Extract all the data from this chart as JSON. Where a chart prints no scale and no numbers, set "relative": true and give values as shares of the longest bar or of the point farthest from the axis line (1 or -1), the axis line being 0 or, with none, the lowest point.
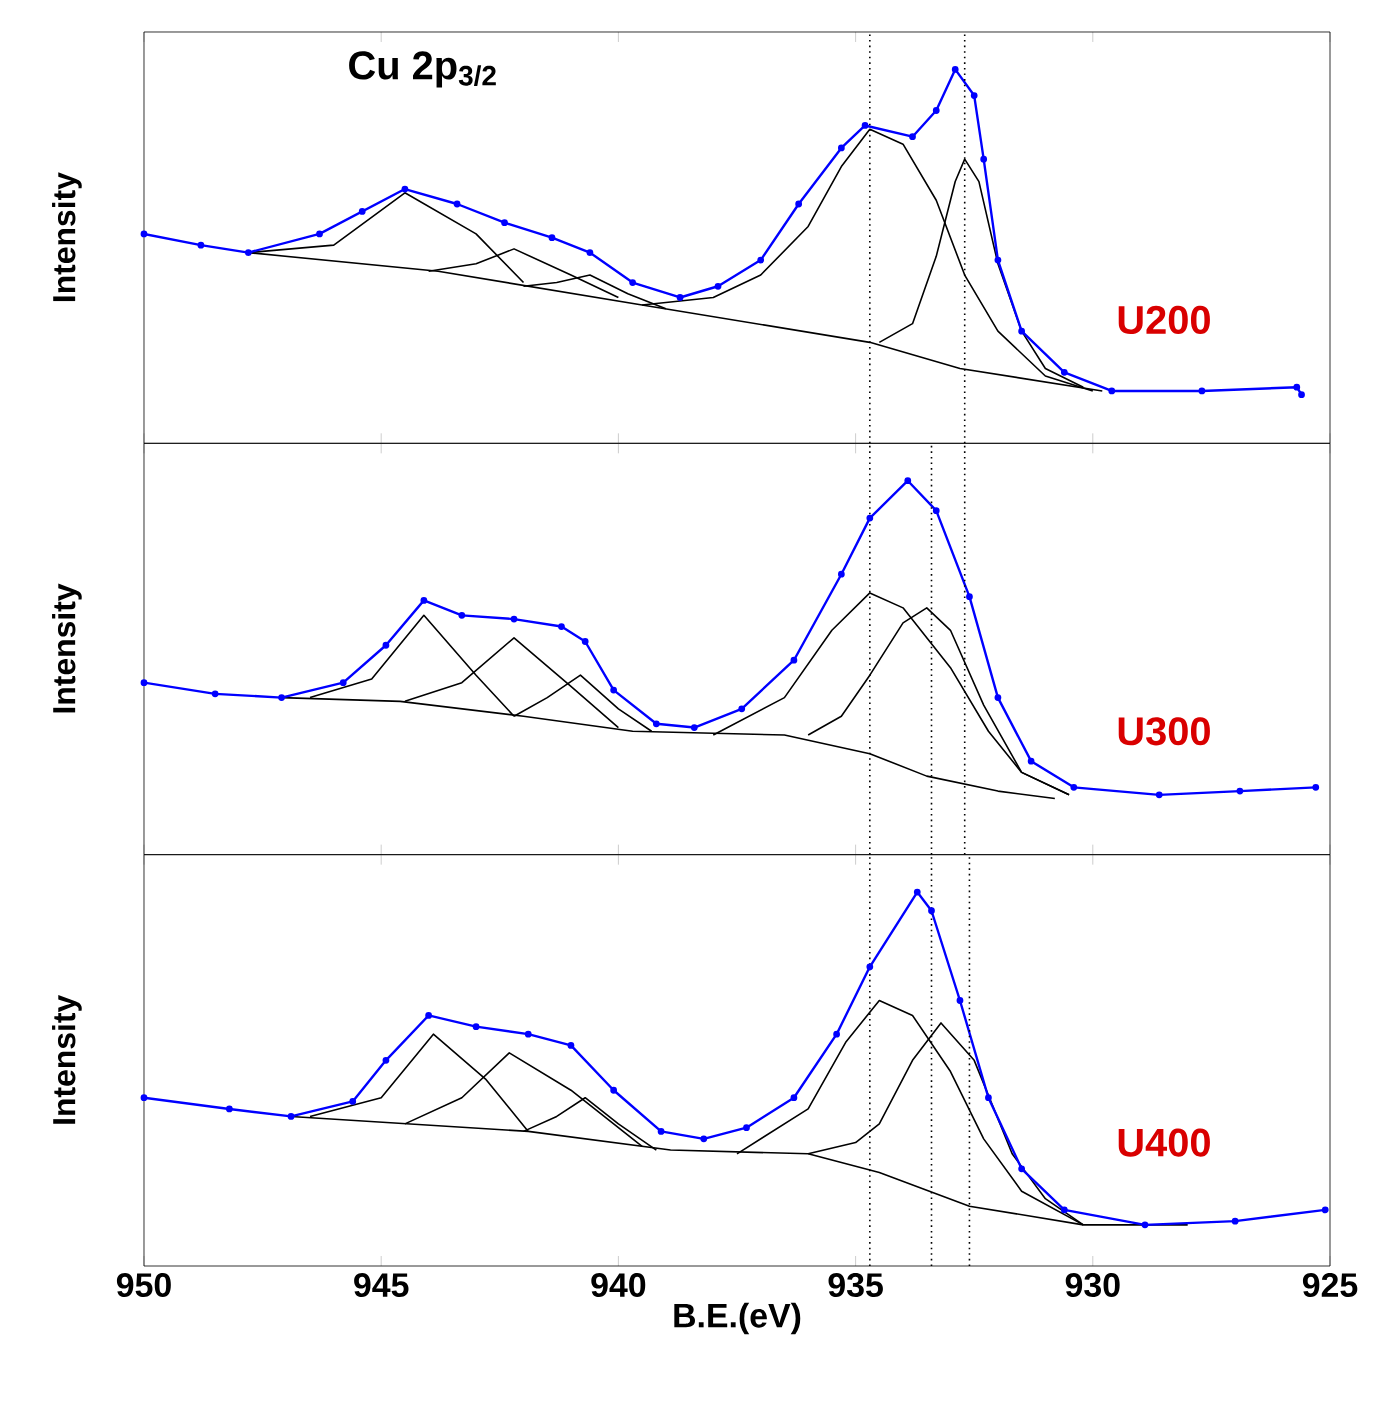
{
  "chart_data": [
    {
      "type": "line",
      "title": "Cu 2p$_{3/2}$",
      "ylabel": "Intensity",
      "relative": true,
      "tick_labels": false,
      "xlim": [
        950,
        925
      ],
      "xticks": [
        950,
        945,
        940,
        935,
        930,
        925
      ],
      "annotations": [
        "U200"
      ],
      "ref_lines": [
        {
          "axis": "x",
          "value": 934.7,
          "line_style": "dotted",
          "color": "#000000"
        },
        {
          "axis": "x",
          "value": 932.7,
          "line_style": "dotted",
          "color": "#000000"
        }
      ],
      "series": [
        {
          "marker": "none",
          "color": "#000000",
          "x": [
            947.8,
            943.8,
            939.5,
            934.7,
            932.8,
            929.8
          ],
          "values": [
            0.51,
            0.46,
            0.37,
            0.27,
            0.2,
            0.14
          ]
        },
        {
          "marker": "none",
          "color": "#000000",
          "x": [
            947.8,
            946,
            944.5,
            943,
            942
          ],
          "values": [
            0.51,
            0.53,
            0.67,
            0.56,
            0.43
          ]
        },
        {
          "marker": "none",
          "color": "#000000",
          "x": [
            944,
            943,
            942.2,
            941,
            940
          ],
          "values": [
            0.46,
            0.48,
            0.52,
            0.45,
            0.39
          ]
        },
        {
          "marker": "none",
          "color": "#000000",
          "x": [
            942,
            941.3,
            940.6,
            939.8,
            939
          ],
          "values": [
            0.42,
            0.43,
            0.45,
            0.4,
            0.36
          ]
        },
        {
          "marker": "none",
          "color": "#000000",
          "x": [
            939.5,
            938,
            937,
            936,
            935.3,
            934.7,
            934,
            933.3,
            932.7,
            932,
            931,
            930
          ],
          "values": [
            0.37,
            0.39,
            0.45,
            0.58,
            0.74,
            0.84,
            0.8,
            0.65,
            0.45,
            0.3,
            0.18,
            0.14
          ]
        },
        {
          "marker": "none",
          "color": "#000000",
          "x": [
            934.5,
            933.8,
            933.3,
            932.9,
            932.7,
            932.4,
            932,
            931.5,
            931,
            930.2
          ],
          "values": [
            0.27,
            0.32,
            0.5,
            0.7,
            0.76,
            0.7,
            0.48,
            0.3,
            0.2,
            0.15
          ]
        },
        {
          "marker": "circle",
          "color": "#0000ff",
          "x": [
            950,
            948.8,
            947.8,
            946.3,
            945.4,
            944.5,
            943.4,
            942.4,
            941.4,
            940.6,
            939.7,
            938.7,
            937.9,
            937.0,
            936.2,
            935.3,
            934.8,
            933.8,
            933.3,
            932.9,
            932.5,
            932.3,
            932.0,
            931.5,
            930.6,
            929.6,
            927.7,
            925.7,
            925.6
          ],
          "values": [
            0.56,
            0.53,
            0.51,
            0.56,
            0.62,
            0.68,
            0.64,
            0.59,
            0.55,
            0.51,
            0.43,
            0.39,
            0.42,
            0.49,
            0.64,
            0.79,
            0.85,
            0.82,
            0.89,
            1.0,
            0.93,
            0.76,
            0.49,
            0.3,
            0.19,
            0.14,
            0.14,
            0.15,
            0.13
          ]
        }
      ]
    },
    {
      "type": "line",
      "ylabel": "Intensity",
      "relative": true,
      "tick_labels": false,
      "xlim": [
        950,
        925
      ],
      "xticks": [
        950,
        945,
        940,
        935,
        930,
        925
      ],
      "annotations": [
        "U300"
      ],
      "ref_lines": [
        {
          "axis": "x",
          "value": 934.7,
          "line_style": "dotted",
          "color": "#000000"
        },
        {
          "axis": "x",
          "value": 933.4,
          "line_style": "dotted",
          "color": "#000000"
        },
        {
          "axis": "x",
          "value": 932.7,
          "line_style": "dotted",
          "color": "#000000"
        }
      ],
      "series": [
        {
          "marker": "none",
          "color": "#000000",
          "x": [
            947.1,
            944.6,
            942,
            939.7,
            936.5,
            934.7,
            933.5,
            932,
            930.8
          ],
          "values": [
            0.42,
            0.41,
            0.37,
            0.33,
            0.32,
            0.27,
            0.21,
            0.17,
            0.15
          ]
        },
        {
          "marker": "none",
          "color": "#000000",
          "x": [
            946.5,
            945.2,
            944.1,
            943,
            942.2
          ],
          "values": [
            0.42,
            0.47,
            0.64,
            0.48,
            0.37
          ]
        },
        {
          "marker": "none",
          "color": "#000000",
          "x": [
            944.5,
            943.3,
            942.2,
            941,
            940
          ],
          "values": [
            0.41,
            0.46,
            0.58,
            0.45,
            0.34
          ]
        },
        {
          "marker": "none",
          "color": "#000000",
          "x": [
            942.2,
            941.5,
            940.8,
            940,
            939.3
          ],
          "values": [
            0.37,
            0.42,
            0.48,
            0.39,
            0.33
          ]
        },
        {
          "marker": "none",
          "color": "#000000",
          "x": [
            938,
            936.5,
            935.5,
            934.7,
            934,
            933,
            932.2,
            931.5,
            930.5
          ],
          "values": [
            0.32,
            0.42,
            0.6,
            0.7,
            0.66,
            0.5,
            0.33,
            0.22,
            0.16
          ]
        },
        {
          "marker": "none",
          "color": "#000000",
          "x": [
            936,
            935.3,
            934.7,
            934,
            933.5,
            933,
            932.3,
            931.5,
            930.5
          ],
          "values": [
            0.32,
            0.37,
            0.48,
            0.62,
            0.66,
            0.6,
            0.4,
            0.22,
            0.16
          ]
        },
        {
          "marker": "circle",
          "color": "#0000ff",
          "x": [
            950,
            948.5,
            947.1,
            945.8,
            944.9,
            944.1,
            943.3,
            942.2,
            941.2,
            940.7,
            940.1,
            939.2,
            938.4,
            937.4,
            936.3,
            935.3,
            934.7,
            933.9,
            933.3,
            932.6,
            932.0,
            931.3,
            930.4,
            928.6,
            926.9,
            925.3
          ],
          "values": [
            0.46,
            0.43,
            0.42,
            0.46,
            0.56,
            0.68,
            0.64,
            0.63,
            0.61,
            0.57,
            0.44,
            0.35,
            0.34,
            0.39,
            0.52,
            0.75,
            0.9,
            1.0,
            0.92,
            0.69,
            0.42,
            0.25,
            0.18,
            0.16,
            0.17,
            0.18
          ]
        }
      ]
    },
    {
      "type": "line",
      "xlabel": "B.E.(eV)",
      "ylabel": "Intensity",
      "relative": true,
      "tick_labels": "x",
      "xlim": [
        950,
        925
      ],
      "xticks": [
        950,
        945,
        940,
        935,
        930,
        925
      ],
      "annotations": [
        "U400"
      ],
      "ref_lines": [
        {
          "axis": "x",
          "value": 934.7,
          "line_style": "dotted",
          "color": "#000000"
        },
        {
          "axis": "x",
          "value": 933.4,
          "line_style": "dotted",
          "color": "#000000"
        },
        {
          "axis": "x",
          "value": 932.6,
          "line_style": "dotted",
          "color": "#000000"
        }
      ],
      "series": [
        {
          "marker": "none",
          "color": "#000000",
          "x": [
            946.9,
            941.9,
            938.9,
            936,
            934.5,
            932.6,
            930.2,
            928
          ],
          "values": [
            0.4,
            0.36,
            0.31,
            0.3,
            0.25,
            0.16,
            0.11,
            0.11
          ]
        },
        {
          "marker": "none",
          "color": "#000000",
          "x": [
            946.5,
            945,
            943.9,
            942.8,
            941.9
          ],
          "values": [
            0.4,
            0.45,
            0.62,
            0.5,
            0.36
          ]
        },
        {
          "marker": "none",
          "color": "#000000",
          "x": [
            944.5,
            943.3,
            942.3,
            941,
            939.5
          ],
          "values": [
            0.38,
            0.45,
            0.57,
            0.47,
            0.32
          ]
        },
        {
          "marker": "none",
          "color": "#000000",
          "x": [
            942,
            941.3,
            940.7,
            940,
            939.2
          ],
          "values": [
            0.36,
            0.4,
            0.45,
            0.38,
            0.31
          ]
        },
        {
          "marker": "none",
          "color": "#000000",
          "x": [
            937.5,
            936,
            935.2,
            934.5,
            933.8,
            933,
            932.3,
            931.5,
            930.2
          ],
          "values": [
            0.3,
            0.42,
            0.6,
            0.71,
            0.67,
            0.52,
            0.34,
            0.2,
            0.11
          ]
        },
        {
          "marker": "none",
          "color": "#000000",
          "x": [
            936,
            935,
            934.5,
            933.8,
            933.2,
            932.5,
            931.7,
            931,
            930.2
          ],
          "values": [
            0.3,
            0.33,
            0.38,
            0.55,
            0.65,
            0.55,
            0.3,
            0.18,
            0.11
          ]
        },
        {
          "marker": "circle",
          "color": "#0000ff",
          "x": [
            950,
            948.2,
            946.9,
            945.6,
            944.9,
            944.0,
            943.0,
            941.9,
            941.0,
            940.1,
            939.1,
            938.2,
            937.3,
            936.3,
            935.4,
            934.7,
            933.7,
            933.4,
            932.8,
            932.2,
            931.5,
            930.6,
            928.9,
            927.0,
            925.1
          ],
          "values": [
            0.45,
            0.42,
            0.4,
            0.44,
            0.55,
            0.67,
            0.64,
            0.62,
            0.59,
            0.47,
            0.36,
            0.34,
            0.37,
            0.45,
            0.62,
            0.8,
            1.0,
            0.95,
            0.71,
            0.45,
            0.26,
            0.15,
            0.11,
            0.12,
            0.15
          ]
        }
      ]
    }
  ]
}
